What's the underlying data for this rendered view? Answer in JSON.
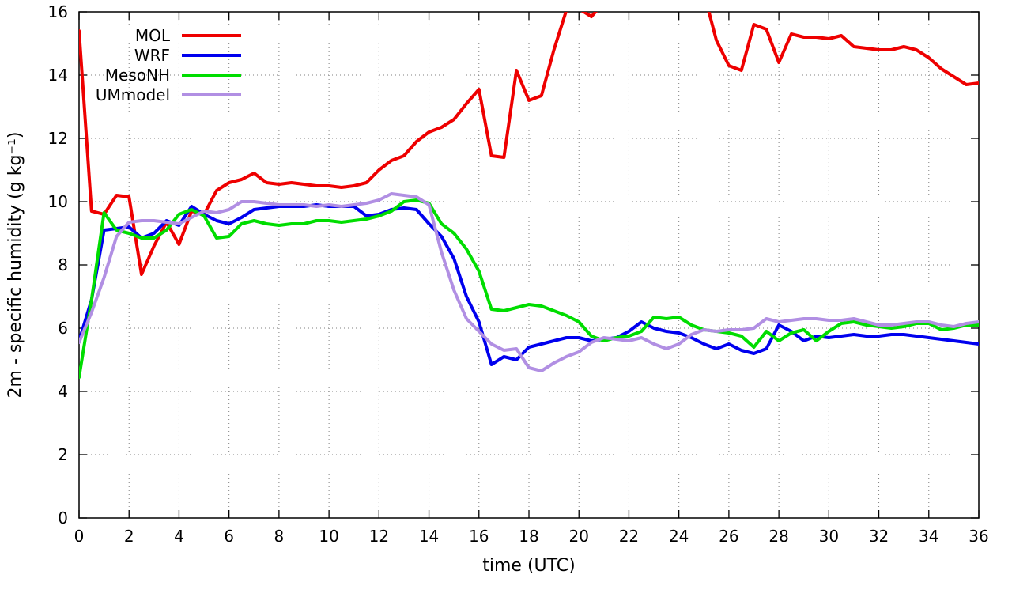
{
  "chart_data": {
    "type": "line",
    "title": "",
    "xlabel": "time (UTC)",
    "ylabel": "2m - specific humidity (g kg⁻¹)",
    "xlim": [
      0,
      36
    ],
    "ylim": [
      0,
      16
    ],
    "xticks": [
      0,
      2,
      4,
      6,
      8,
      10,
      12,
      14,
      16,
      18,
      20,
      22,
      24,
      26,
      28,
      30,
      32,
      34,
      36
    ],
    "yticks": [
      0,
      2,
      4,
      6,
      8,
      10,
      12,
      14,
      16
    ],
    "grid": true,
    "legend_position": "top-left-inside",
    "line_width": 4,
    "x": [
      0,
      0.5,
      1,
      1.5,
      2,
      2.5,
      3,
      3.5,
      4,
      4.5,
      5,
      5.5,
      6,
      6.5,
      7,
      7.5,
      8,
      8.5,
      9,
      9.5,
      10,
      10.5,
      11,
      11.5,
      12,
      12.5,
      13,
      13.5,
      14,
      14.5,
      15,
      15.5,
      16,
      16.5,
      17,
      17.5,
      18,
      18.5,
      19,
      19.5,
      20,
      20.5,
      21,
      21.5,
      22,
      22.5,
      23,
      23.5,
      24,
      24.5,
      25,
      25.5,
      26,
      26.5,
      27,
      27.5,
      28,
      28.5,
      29,
      29.5,
      30,
      30.5,
      31,
      31.5,
      32,
      32.5,
      33,
      33.5,
      34,
      34.5,
      35,
      35.5,
      36
    ],
    "series": [
      {
        "name": "MOL",
        "color": "#ee0000",
        "values": [
          15.4,
          9.7,
          9.6,
          10.2,
          10.15,
          7.7,
          8.6,
          9.35,
          8.65,
          9.7,
          9.6,
          10.35,
          10.6,
          10.7,
          10.9,
          10.6,
          10.55,
          10.6,
          10.55,
          10.5,
          10.5,
          10.45,
          10.5,
          10.6,
          11.0,
          11.3,
          11.45,
          11.9,
          12.2,
          12.35,
          12.6,
          13.1,
          13.55,
          11.45,
          11.4,
          14.15,
          13.2,
          13.35,
          14.8,
          16.05,
          16.1,
          15.85,
          16.3,
          17.0,
          17.5,
          17.6,
          17.6,
          17.4,
          17.2,
          17.0,
          16.6,
          15.1,
          14.3,
          14.15,
          15.6,
          15.45,
          14.4,
          15.3,
          15.2,
          15.2,
          15.15,
          15.25,
          14.9,
          14.85,
          14.8,
          14.8,
          14.9,
          14.8,
          14.55,
          14.2,
          13.95,
          13.7,
          13.75
        ]
      },
      {
        "name": "WRF",
        "color": "#0000ee",
        "values": [
          5.6,
          6.9,
          9.1,
          9.15,
          9.2,
          8.85,
          9.0,
          9.4,
          9.25,
          9.85,
          9.6,
          9.4,
          9.3,
          9.5,
          9.75,
          9.8,
          9.85,
          9.85,
          9.85,
          9.9,
          9.85,
          9.85,
          9.85,
          9.55,
          9.6,
          9.75,
          9.8,
          9.75,
          9.3,
          8.9,
          8.2,
          7.0,
          6.2,
          4.85,
          5.1,
          5.0,
          5.4,
          5.5,
          5.6,
          5.7,
          5.7,
          5.6,
          5.65,
          5.7,
          5.9,
          6.2,
          6.0,
          5.9,
          5.85,
          5.7,
          5.5,
          5.35,
          5.5,
          5.3,
          5.2,
          5.35,
          6.1,
          5.9,
          5.6,
          5.75,
          5.7,
          5.75,
          5.8,
          5.75,
          5.75,
          5.8,
          5.8,
          5.75,
          5.7,
          5.65,
          5.6,
          5.55,
          5.5
        ]
      },
      {
        "name": "MesoNH",
        "color": "#00dd00",
        "values": [
          4.45,
          6.9,
          9.65,
          9.1,
          9.0,
          8.85,
          8.85,
          9.1,
          9.6,
          9.75,
          9.55,
          8.85,
          8.9,
          9.3,
          9.4,
          9.3,
          9.25,
          9.3,
          9.3,
          9.4,
          9.4,
          9.35,
          9.4,
          9.45,
          9.55,
          9.7,
          10.0,
          10.05,
          9.95,
          9.3,
          9.0,
          8.5,
          7.8,
          6.6,
          6.55,
          6.65,
          6.75,
          6.7,
          6.55,
          6.4,
          6.2,
          5.75,
          5.6,
          5.7,
          5.75,
          5.9,
          6.35,
          6.3,
          6.35,
          6.1,
          5.95,
          5.9,
          5.85,
          5.75,
          5.4,
          5.9,
          5.6,
          5.85,
          5.95,
          5.6,
          5.9,
          6.15,
          6.2,
          6.1,
          6.05,
          6.0,
          6.05,
          6.15,
          6.15,
          5.95,
          6.0,
          6.1,
          6.1
        ]
      },
      {
        "name": "UMmodel",
        "color": "#b18fe3",
        "values": [
          5.55,
          6.5,
          7.6,
          8.9,
          9.35,
          9.4,
          9.4,
          9.35,
          9.3,
          9.5,
          9.7,
          9.65,
          9.75,
          10.0,
          10.0,
          9.95,
          9.9,
          9.9,
          9.9,
          9.85,
          9.9,
          9.85,
          9.9,
          9.95,
          10.05,
          10.25,
          10.2,
          10.15,
          9.9,
          8.4,
          7.2,
          6.3,
          5.9,
          5.5,
          5.3,
          5.35,
          4.75,
          4.65,
          4.9,
          5.1,
          5.25,
          5.55,
          5.7,
          5.65,
          5.6,
          5.7,
          5.5,
          5.35,
          5.5,
          5.8,
          5.95,
          5.9,
          5.95,
          5.95,
          6.0,
          6.3,
          6.2,
          6.25,
          6.3,
          6.3,
          6.25,
          6.25,
          6.3,
          6.2,
          6.1,
          6.1,
          6.15,
          6.2,
          6.2,
          6.1,
          6.05,
          6.15,
          6.2
        ]
      }
    ]
  }
}
